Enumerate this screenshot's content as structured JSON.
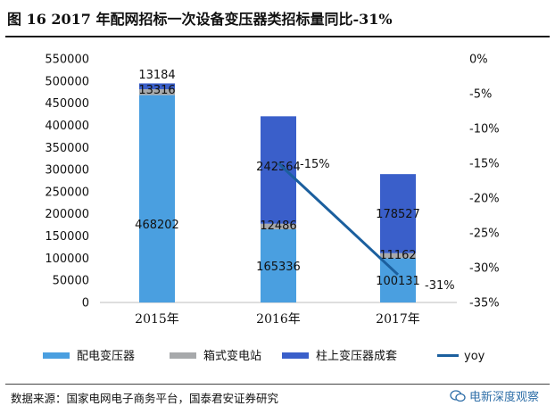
{
  "header": {
    "title": "图 16   2017 年配网招标一次设备变压器类招标量同比-31%"
  },
  "footer": {
    "source": "数据来源：国家电网电子商务平台，国泰君安证券研究",
    "watermark": "电新深度观察"
  },
  "colors": {
    "peidian": "#4a9fe0",
    "xiangshi": "#a7a9ab",
    "zhushang": "#3a5fca",
    "yoy": "#1b5f9e"
  },
  "chart_data": {
    "type": "bar",
    "stacked": true,
    "categories": [
      "2015年",
      "2016年",
      "2017年"
    ],
    "series": [
      {
        "name": "配电变压器",
        "values": [
          468202,
          165336,
          100131
        ],
        "labels": [
          "468202",
          "165336",
          "100131"
        ]
      },
      {
        "name": "箱式变电站",
        "values": [
          13316,
          12486,
          11162
        ],
        "labels": [
          "13316",
          "12486",
          "11162"
        ]
      },
      {
        "name": "柱上变压器成套",
        "values": [
          13184,
          242564,
          178527
        ],
        "labels": [
          "13184",
          "242564",
          "178527"
        ]
      }
    ],
    "line": {
      "name": "yoy",
      "x": [
        "2016年",
        "2017年"
      ],
      "values": [
        -15,
        -31
      ],
      "labels": [
        "-15%",
        "-31%"
      ]
    },
    "yleft": {
      "min": 0,
      "max": 550000,
      "step": 50000,
      "ticks": [
        "0",
        "50000",
        "100000",
        "150000",
        "200000",
        "250000",
        "300000",
        "350000",
        "400000",
        "450000",
        "500000",
        "550000"
      ]
    },
    "yright": {
      "min": -35,
      "max": 0,
      "step": 5,
      "ticks": [
        "0%",
        "-5%",
        "-10%",
        "-15%",
        "-20%",
        "-25%",
        "-30%",
        "-35%"
      ]
    },
    "legend_position": "bottom"
  }
}
